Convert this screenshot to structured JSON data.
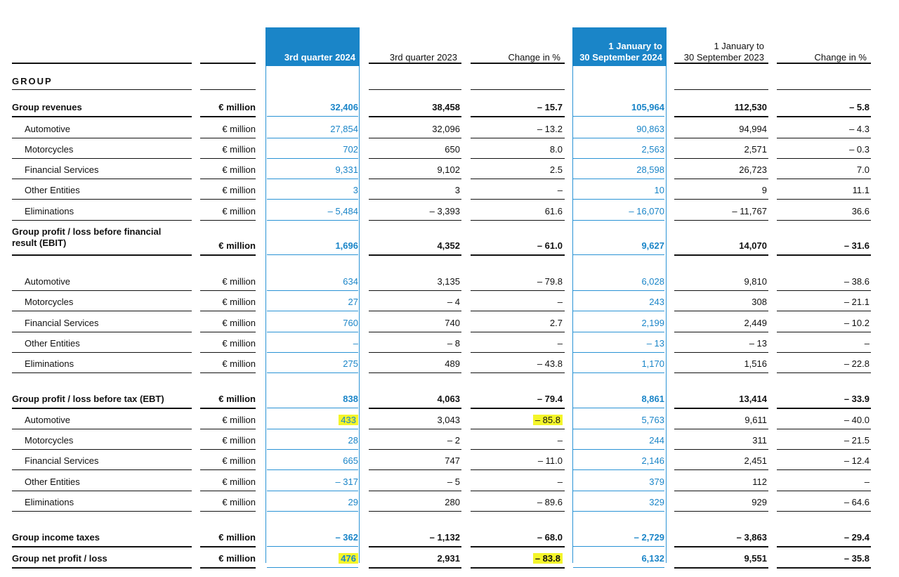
{
  "header": {
    "col1": "3rd quarter 2024",
    "col2": "3rd quarter 2023",
    "col3": "Change in %",
    "col4": "1 January to\n30 September 2024",
    "col5": "1 January to\n30 September 2023",
    "col6": "Change in %"
  },
  "section_title": "GROUP",
  "colors": {
    "accent": "#1a85c8",
    "highlight": "#f4f52a"
  },
  "rows": [
    {
      "label": "Group revenues",
      "unit": "€ million",
      "bold": true,
      "v": [
        "32,406",
        "38,458",
        "– 15.7",
        "105,964",
        "112,530",
        "– 5.8"
      ]
    },
    {
      "label": "Automotive",
      "unit": "€ million",
      "v": [
        "27,854",
        "32,096",
        "– 13.2",
        "90,863",
        "94,994",
        "– 4.3"
      ]
    },
    {
      "label": "Motorcycles",
      "unit": "€ million",
      "v": [
        "702",
        "650",
        "8.0",
        "2,563",
        "2,571",
        "– 0.3"
      ]
    },
    {
      "label": "Financial Services",
      "unit": "€ million",
      "v": [
        "9,331",
        "9,102",
        "2.5",
        "28,598",
        "26,723",
        "7.0"
      ]
    },
    {
      "label": "Other Entities",
      "unit": "€ million",
      "v": [
        "3",
        "3",
        "–",
        "10",
        "9",
        "11.1"
      ]
    },
    {
      "label": "Eliminations",
      "unit": "€ million",
      "v": [
        "– 5,484",
        "– 3,393",
        "61.6",
        "– 16,070",
        "– 11,767",
        "36.6"
      ]
    },
    {
      "label": "Group profit / loss before financial\nresult (EBIT)",
      "unit": "€ million",
      "bold": true,
      "v": [
        "1,696",
        "4,352",
        "– 61.0",
        "9,627",
        "14,070",
        "– 31.6"
      ]
    },
    {
      "label": "Automotive",
      "unit": "€ million",
      "v": [
        "634",
        "3,135",
        "– 79.8",
        "6,028",
        "9,810",
        "– 38.6"
      ]
    },
    {
      "label": "Motorcycles",
      "unit": "€ million",
      "v": [
        "27",
        "– 4",
        "–",
        "243",
        "308",
        "– 21.1"
      ]
    },
    {
      "label": "Financial Services",
      "unit": "€ million",
      "v": [
        "760",
        "740",
        "2.7",
        "2,199",
        "2,449",
        "– 10.2"
      ]
    },
    {
      "label": "Other Entities",
      "unit": "€ million",
      "v": [
        "–",
        "– 8",
        "–",
        "– 13",
        "– 13",
        "–"
      ]
    },
    {
      "label": "Eliminations",
      "unit": "€ million",
      "v": [
        "275",
        "489",
        "– 43.8",
        "1,170",
        "1,516",
        "– 22.8"
      ]
    },
    {
      "label": "Group profit / loss before tax (EBT)",
      "unit": "€ million",
      "bold": true,
      "v": [
        "838",
        "4,063",
        "– 79.4",
        "8,861",
        "13,414",
        "– 33.9"
      ]
    },
    {
      "label": "Automotive",
      "unit": "€ million",
      "v": [
        "433",
        "3,043",
        "– 85.8",
        "5,763",
        "9,611",
        "– 40.0"
      ],
      "hl": [
        0,
        2
      ]
    },
    {
      "label": "Motorcycles",
      "unit": "€ million",
      "v": [
        "28",
        "– 2",
        "–",
        "244",
        "311",
        "– 21.5"
      ]
    },
    {
      "label": "Financial Services",
      "unit": "€ million",
      "v": [
        "665",
        "747",
        "– 11.0",
        "2,146",
        "2,451",
        "– 12.4"
      ]
    },
    {
      "label": "Other Entities",
      "unit": "€ million",
      "v": [
        "– 317",
        "– 5",
        "–",
        "379",
        "112",
        "–"
      ]
    },
    {
      "label": "Eliminations",
      "unit": "€ million",
      "v": [
        "29",
        "280",
        "– 89.6",
        "329",
        "929",
        "– 64.6"
      ]
    },
    {
      "label": "Group income taxes",
      "unit": "€ million",
      "bold": true,
      "v": [
        "– 362",
        "– 1,132",
        "– 68.0",
        "– 2,729",
        "– 3,863",
        "– 29.4"
      ]
    },
    {
      "label": "Group net profit / loss",
      "unit": "€ million",
      "bold": true,
      "v": [
        "476",
        "2,931",
        "– 83.8",
        "6,132",
        "9,551",
        "– 35.8"
      ],
      "hl": [
        0,
        2
      ]
    }
  ]
}
